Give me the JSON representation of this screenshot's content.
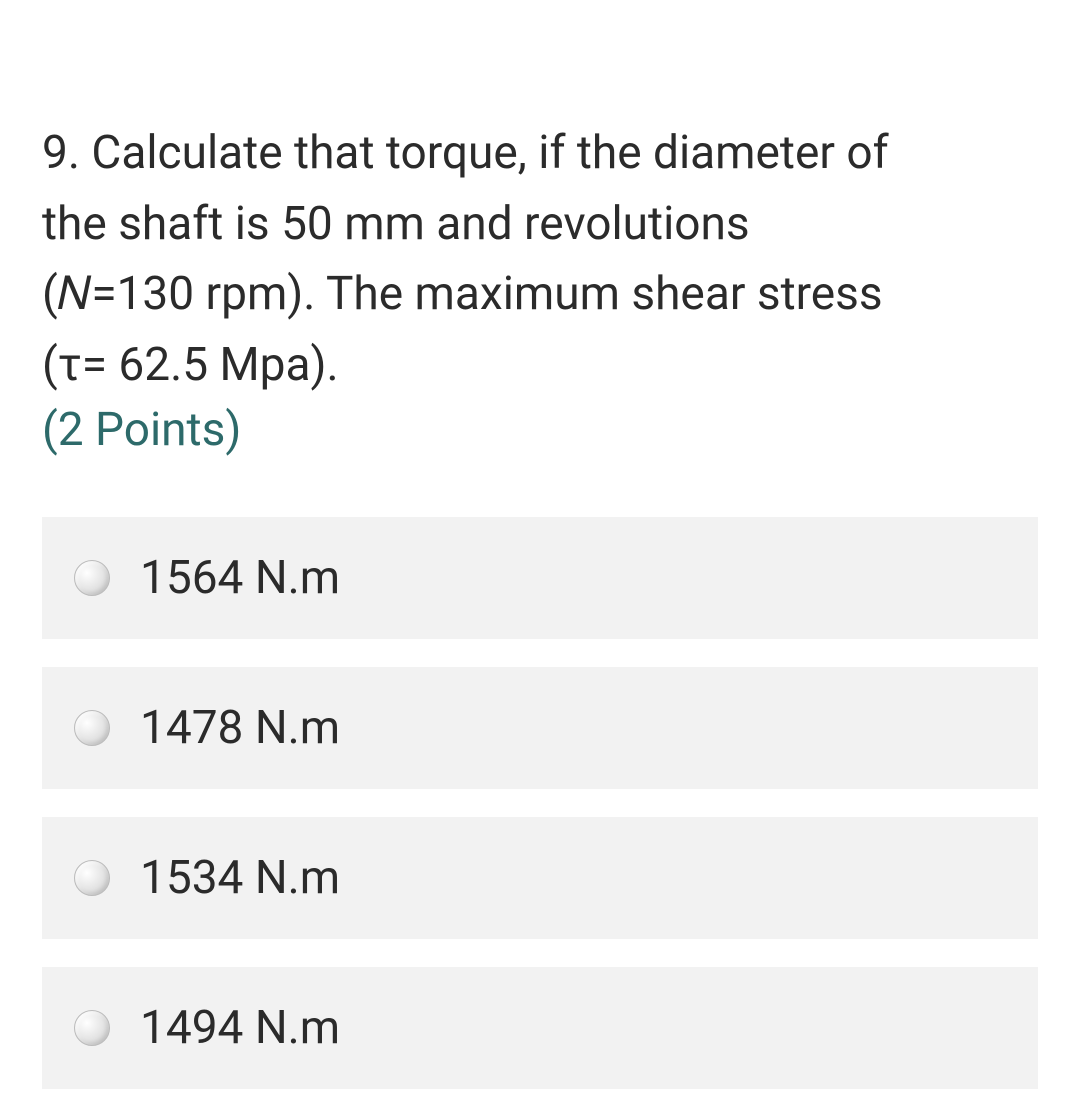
{
  "question": {
    "number": "9.",
    "text_line1": "9. Calculate that torque, if the diameter of",
    "text_line2": "the shaft is 50 mm and revolutions",
    "text_line3": "(𝑁=130 rpm). The maximum shear stress",
    "text_line4": "(τ= 62.5 Mpa).",
    "points_label": "(2 Points)"
  },
  "options": [
    {
      "label": "1564 N.m"
    },
    {
      "label": "1478 N.m"
    },
    {
      "label": "1534 N.m"
    },
    {
      "label": "1494 N.m"
    }
  ],
  "styling": {
    "background_color": "#ffffff",
    "text_color": "#2b2b2b",
    "points_color": "#2d6a6a",
    "option_bg_color": "#f2f2f2",
    "radio_border_color": "#bbbbbb",
    "question_fontsize": 46,
    "option_fontsize": 46,
    "option_gap": 28,
    "option_padding": 34,
    "radio_size": 36
  }
}
